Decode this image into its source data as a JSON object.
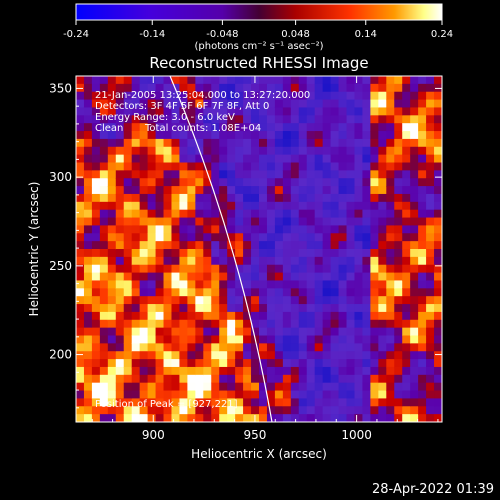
{
  "chart_data": {
    "type": "heatmap",
    "title": "Reconstructed RHESSI Image",
    "xlabel": "Heliocentric X (arcsec)",
    "ylabel": "Heliocentric Y (arcsec)",
    "xlim": [
      862,
      1042
    ],
    "ylim": [
      162,
      357
    ],
    "x_ticks": [
      900,
      950,
      1000
    ],
    "y_ticks": [
      200,
      250,
      300,
      350
    ],
    "colorbar": {
      "range": [
        -0.24,
        0.24
      ],
      "tick_labels": [
        "-0.24",
        "-0.14",
        "-0.048",
        "0.048",
        "0.14",
        "0.24"
      ],
      "label": "(photons cm⁻² s⁻¹ asec⁻²)",
      "colors": [
        "#0000ff",
        "#5a00c8",
        "#5500aa",
        "#7a0000",
        "#ff0000",
        "#ff8800",
        "#ffffaa",
        "#ffffff"
      ]
    },
    "annotations": {
      "time_range": "21-Jan-2005 13:25:04.000 to 13:27:20.000",
      "detectors": "Detectors: 3F 4F 5F 6F 7F 8F, Att 0",
      "energy_range": "Energy Range: 3.0 - 6.0 keV",
      "clean": "Clean",
      "total_counts": "Total counts: 1.08E+04",
      "peak": "Position of Peak = [927,221]"
    },
    "peak_position": [
      927,
      221
    ]
  },
  "footer": {
    "timestamp": "28-Apr-2022 01:39"
  }
}
